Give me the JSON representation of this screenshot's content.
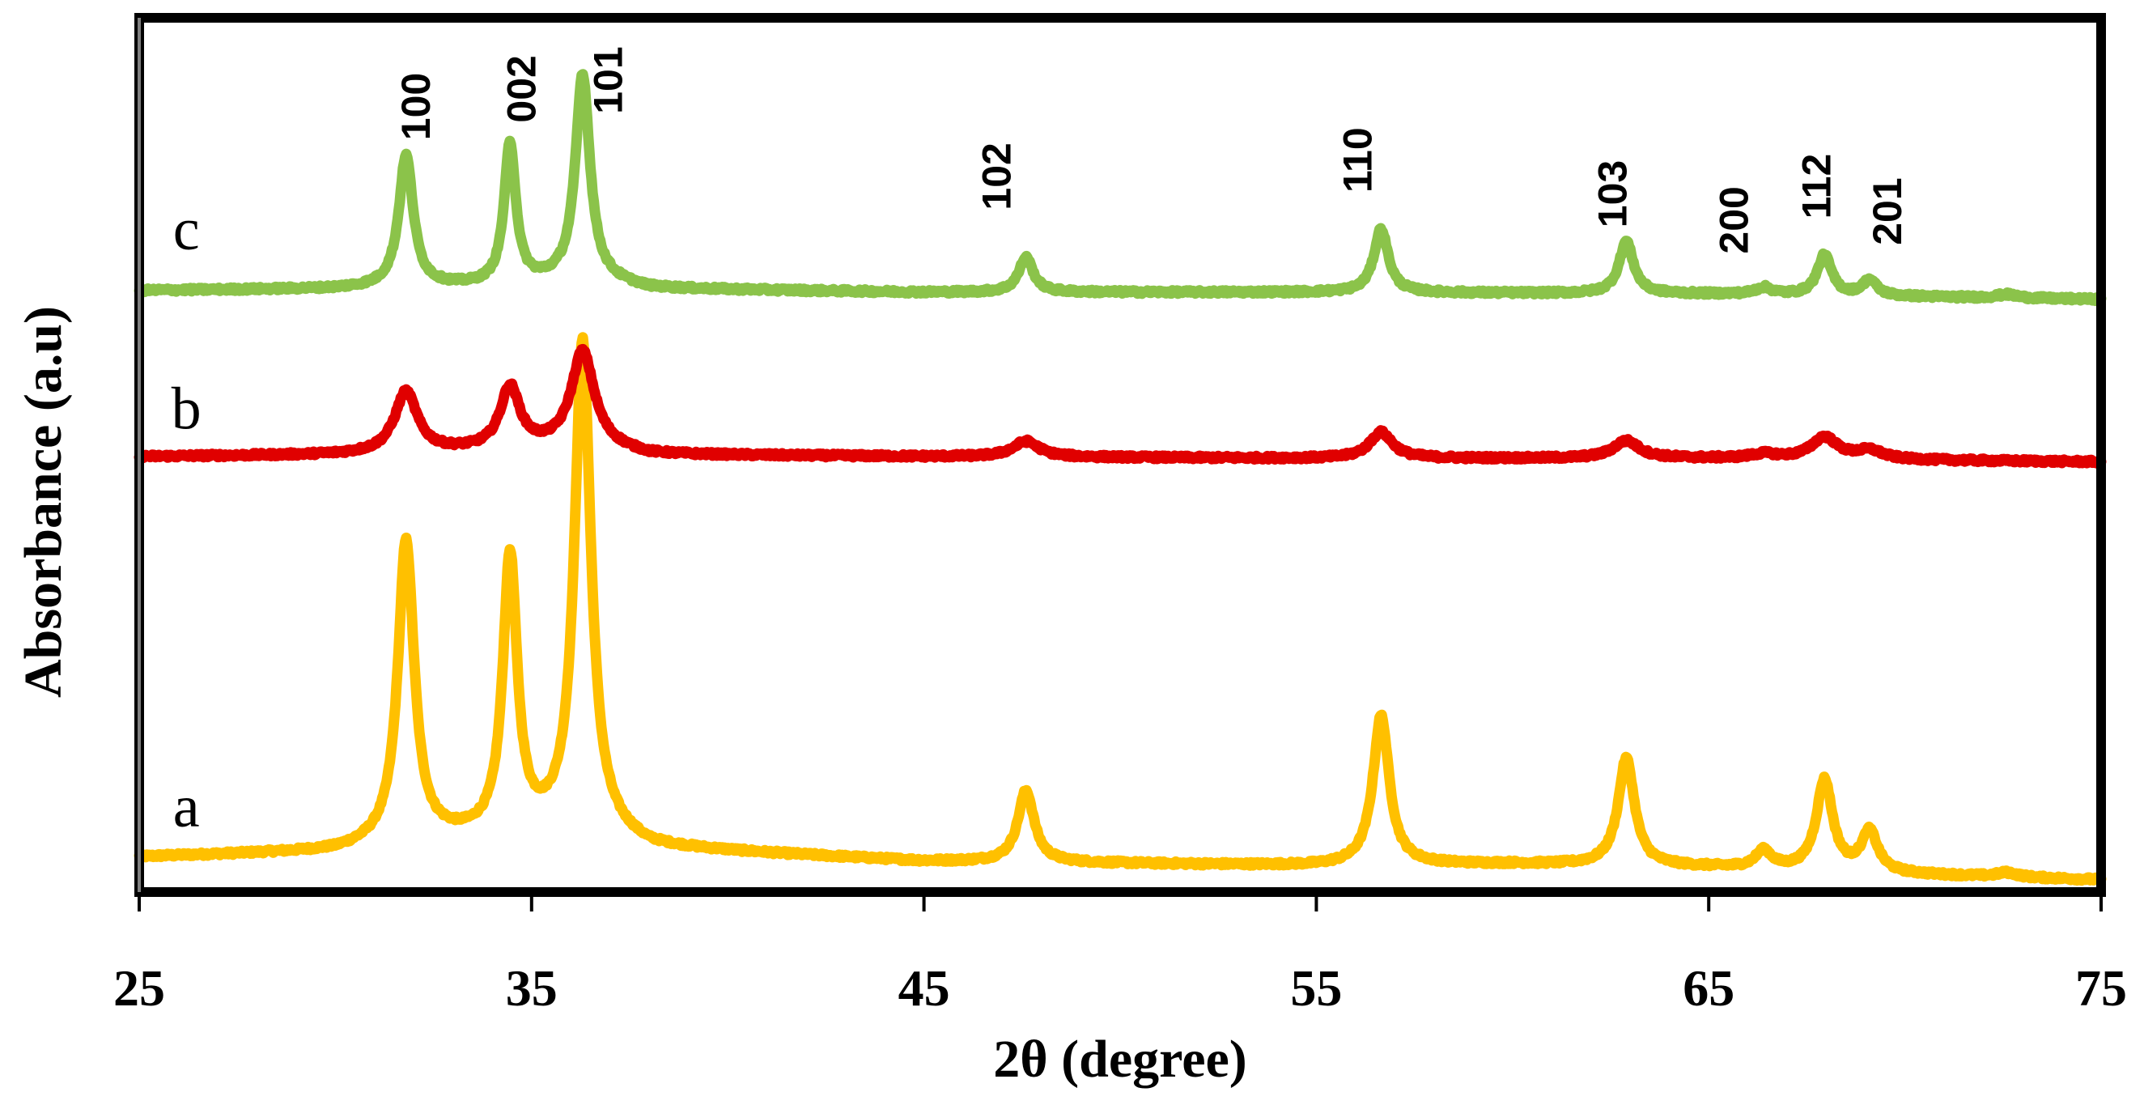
{
  "chart_data": {
    "type": "line",
    "title": "",
    "xlabel": "2θ (degree)",
    "ylabel": "Absorbance (a.u)",
    "xlim": [
      25,
      75
    ],
    "ylim": [
      0,
      1
    ],
    "xticks": [
      25,
      35,
      45,
      55,
      65,
      75
    ],
    "xtick_labels": [
      "25",
      "35",
      "45",
      "55",
      "65",
      "75"
    ],
    "grid": false,
    "legend": "none",
    "series": [
      {
        "name": "a",
        "color": "#FFC000",
        "baseline": [
          [
            25,
            0.04
          ],
          [
            30,
            0.046
          ],
          [
            32,
            0.058
          ],
          [
            34,
            0.062
          ],
          [
            36.5,
            0.07
          ],
          [
            38,
            0.05
          ],
          [
            45,
            0.035
          ],
          [
            55,
            0.03
          ],
          [
            60,
            0.032
          ],
          [
            65,
            0.028
          ],
          [
            70,
            0.02
          ],
          [
            75,
            0.014
          ]
        ],
        "peaks": [
          {
            "x": 31.8,
            "height": 0.343,
            "width": 0.25
          },
          {
            "x": 34.45,
            "height": 0.316,
            "width": 0.22
          },
          {
            "x": 36.3,
            "height": 0.558,
            "width": 0.25
          },
          {
            "x": 47.6,
            "height": 0.082,
            "width": 0.25
          },
          {
            "x": 56.65,
            "height": 0.171,
            "width": 0.25
          },
          {
            "x": 62.9,
            "height": 0.123,
            "width": 0.25
          },
          {
            "x": 66.4,
            "height": 0.02,
            "width": 0.25
          },
          {
            "x": 67.95,
            "height": 0.104,
            "width": 0.25
          },
          {
            "x": 69.1,
            "height": 0.046,
            "width": 0.25
          },
          {
            "x": 72.6,
            "height": 0.005,
            "width": 0.3
          }
        ]
      },
      {
        "name": "b",
        "color": "#E00000",
        "baseline": [
          [
            25,
            0.498
          ],
          [
            30,
            0.5
          ],
          [
            32,
            0.502
          ],
          [
            36.5,
            0.51
          ],
          [
            38,
            0.5
          ],
          [
            45,
            0.498
          ],
          [
            55,
            0.496
          ],
          [
            65,
            0.496
          ],
          [
            75,
            0.492
          ]
        ],
        "peaks": [
          {
            "x": 31.8,
            "height": 0.07,
            "width": 0.35
          },
          {
            "x": 34.45,
            "height": 0.07,
            "width": 0.3
          },
          {
            "x": 36.3,
            "height": 0.108,
            "width": 0.35
          },
          {
            "x": 47.6,
            "height": 0.018,
            "width": 0.4
          },
          {
            "x": 56.65,
            "height": 0.03,
            "width": 0.35
          },
          {
            "x": 62.9,
            "height": 0.02,
            "width": 0.4
          },
          {
            "x": 66.4,
            "height": 0.005,
            "width": 0.4
          },
          {
            "x": 67.95,
            "height": 0.025,
            "width": 0.4
          },
          {
            "x": 69.1,
            "height": 0.01,
            "width": 0.4
          }
        ]
      },
      {
        "name": "c",
        "color": "#8BC34A",
        "baseline": [
          [
            25,
            0.688
          ],
          [
            30,
            0.69
          ],
          [
            32,
            0.692
          ],
          [
            34,
            0.693
          ],
          [
            36.5,
            0.7
          ],
          [
            38,
            0.69
          ],
          [
            45,
            0.686
          ],
          [
            55,
            0.686
          ],
          [
            65,
            0.684
          ],
          [
            75,
            0.678
          ]
        ],
        "peaks": [
          {
            "x": 31.8,
            "height": 0.15,
            "width": 0.22
          },
          {
            "x": 34.45,
            "height": 0.16,
            "width": 0.18
          },
          {
            "x": 36.3,
            "height": 0.235,
            "width": 0.22
          },
          {
            "x": 47.6,
            "height": 0.04,
            "width": 0.22
          },
          {
            "x": 56.65,
            "height": 0.073,
            "width": 0.22
          },
          {
            "x": 62.9,
            "height": 0.06,
            "width": 0.22
          },
          {
            "x": 66.4,
            "height": 0.008,
            "width": 0.25
          },
          {
            "x": 67.95,
            "height": 0.046,
            "width": 0.22
          },
          {
            "x": 69.1,
            "height": 0.018,
            "width": 0.22
          },
          {
            "x": 72.6,
            "height": 0.004,
            "width": 0.3
          }
        ]
      }
    ],
    "series_labels": [
      {
        "text": "a",
        "x": 26.2,
        "y": 0.075
      },
      {
        "text": "b",
        "x": 26.2,
        "y": 0.53
      },
      {
        "text": "c",
        "x": 26.2,
        "y": 0.735
      }
    ],
    "peak_labels": [
      {
        "text": "100",
        "x": 32.4,
        "y": 0.86
      },
      {
        "text": "002",
        "x": 35.1,
        "y": 0.88
      },
      {
        "text": "101",
        "x": 37.3,
        "y": 0.89
      },
      {
        "text": "102",
        "x": 47.2,
        "y": 0.78
      },
      {
        "text": "110",
        "x": 56.4,
        "y": 0.8
      },
      {
        "text": "103",
        "x": 62.9,
        "y": 0.76
      },
      {
        "text": "200",
        "x": 66.0,
        "y": 0.73
      },
      {
        "text": "112",
        "x": 68.1,
        "y": 0.77
      },
      {
        "text": "201",
        "x": 69.9,
        "y": 0.74
      }
    ]
  }
}
